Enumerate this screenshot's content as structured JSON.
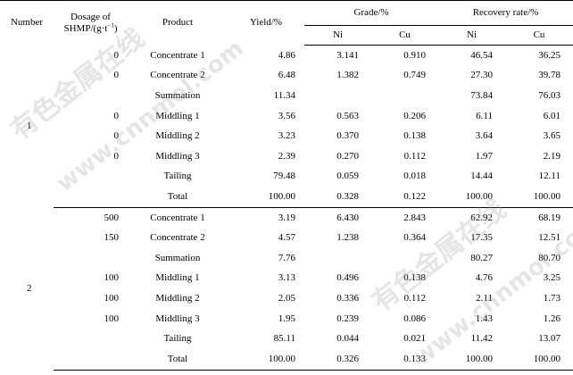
{
  "headers": {
    "number": "Number",
    "dosage_line1": "Dosage of",
    "dosage_line2_prefix": "SHMP/(g·t",
    "dosage_sup": "−1",
    "dosage_line2_suffix": ")",
    "product": "Product",
    "yield": "Yield/%",
    "grade": "Grade/%",
    "recovery": "Recovery rate/%",
    "ni": "Ni",
    "cu": "Cu"
  },
  "groups": [
    {
      "number": "1",
      "rows": [
        {
          "dose": "0",
          "product": "Concentrate 1",
          "yield": "4.86",
          "grade_ni": "3.141",
          "grade_cu": "0.910",
          "rec_ni": "46.54",
          "rec_cu": "36.25"
        },
        {
          "dose": "0",
          "product": "Concentrate 2",
          "yield": "6.48",
          "grade_ni": "1.382",
          "grade_cu": "0.749",
          "rec_ni": "27.30",
          "rec_cu": "39.78"
        },
        {
          "dose": "",
          "product": "Summation",
          "yield": "11.34",
          "grade_ni": "",
          "grade_cu": "",
          "rec_ni": "73.84",
          "rec_cu": "76.03"
        },
        {
          "dose": "0",
          "product": "Middling 1",
          "yield": "3.56",
          "grade_ni": "0.563",
          "grade_cu": "0.206",
          "rec_ni": "6.11",
          "rec_cu": "6.01"
        },
        {
          "dose": "0",
          "product": "Middling 2",
          "yield": "3.23",
          "grade_ni": "0.370",
          "grade_cu": "0.138",
          "rec_ni": "3.64",
          "rec_cu": "3.65"
        },
        {
          "dose": "0",
          "product": "Middling 3",
          "yield": "2.39",
          "grade_ni": "0.270",
          "grade_cu": "0.112",
          "rec_ni": "1.97",
          "rec_cu": "2.19"
        },
        {
          "dose": "",
          "product": "Tailing",
          "yield": "79.48",
          "grade_ni": "0.059",
          "grade_cu": "0.018",
          "rec_ni": "14.44",
          "rec_cu": "12.11"
        },
        {
          "dose": "",
          "product": "Total",
          "yield": "100.00",
          "grade_ni": "0.328",
          "grade_cu": "0.122",
          "rec_ni": "100.00",
          "rec_cu": "100.00"
        }
      ]
    },
    {
      "number": "2",
      "rows": [
        {
          "dose": "500",
          "product": "Concentrate 1",
          "yield": "3.19",
          "grade_ni": "6.430",
          "grade_cu": "2.843",
          "rec_ni": "62.92",
          "rec_cu": "68.19"
        },
        {
          "dose": "150",
          "product": "Concentrate 2",
          "yield": "4.57",
          "grade_ni": "1.238",
          "grade_cu": "0.364",
          "rec_ni": "17.35",
          "rec_cu": "12.51"
        },
        {
          "dose": "",
          "product": "Summation",
          "yield": "7.76",
          "grade_ni": "",
          "grade_cu": "",
          "rec_ni": "80.27",
          "rec_cu": "80.70"
        },
        {
          "dose": "100",
          "product": "Middling 1",
          "yield": "3.13",
          "grade_ni": "0.496",
          "grade_cu": "0.138",
          "rec_ni": "4.76",
          "rec_cu": "3.25"
        },
        {
          "dose": "100",
          "product": "Middling 2",
          "yield": "2.05",
          "grade_ni": "0.336",
          "grade_cu": "0.112",
          "rec_ni": "2.11",
          "rec_cu": "1.73"
        },
        {
          "dose": "100",
          "product": "Middling 3",
          "yield": "1.95",
          "grade_ni": "0.239",
          "grade_cu": "0.086",
          "rec_ni": "1.43",
          "rec_cu": "1.26"
        },
        {
          "dose": "",
          "product": "Tailing",
          "yield": "85.11",
          "grade_ni": "0.044",
          "grade_cu": "0.021",
          "rec_ni": "11.42",
          "rec_cu": "13.07"
        },
        {
          "dose": "",
          "product": "Total",
          "yield": "100.00",
          "grade_ni": "0.326",
          "grade_cu": "0.133",
          "rec_ni": "100.00",
          "rec_cu": "100.00"
        }
      ]
    }
  ],
  "watermarks": {
    "cn": "有色金属在线",
    "url": "www.cnnmol.com"
  }
}
